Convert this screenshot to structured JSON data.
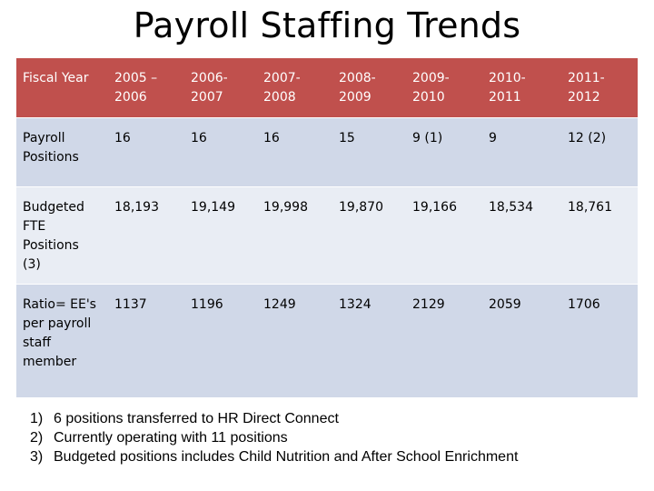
{
  "title": "Payroll Staffing Trends",
  "table": {
    "headers": [
      "Fiscal Year",
      "2005 –\n2006",
      "2006-\n2007",
      "2007-\n2008",
      "2008-\n2009",
      "2009-\n2010",
      "2010-\n2011",
      "2011-\n2012"
    ],
    "rows": [
      {
        "label": "Payroll\nPositions",
        "cells": [
          "16",
          "16",
          "16",
          "15",
          "9  (1)",
          "9",
          "12  (2)"
        ]
      },
      {
        "label": "Budgeted\nFTE\nPositions\n(3)",
        "cells": [
          "18,193",
          "19,149",
          "19,998",
          "19,870",
          "19,166",
          "18,534",
          "18,761"
        ]
      },
      {
        "label": "Ratio= EE's\nper payroll\nstaff\nmember",
        "cells": [
          "1137",
          "1196",
          "1249",
          "1324",
          "2129",
          "2059",
          "1706"
        ]
      }
    ]
  },
  "footnotes": [
    {
      "num": "1)",
      "text": "6 positions transferred to HR Direct Connect"
    },
    {
      "num": "2)",
      "text": "Currently operating with 11 positions"
    },
    {
      "num": "3)",
      "text": "Budgeted positions includes Child Nutrition and After School Enrichment"
    }
  ],
  "colors": {
    "header_bg": "#c0504d",
    "band_dark": "#d0d8e8",
    "band_light": "#e9edf4"
  }
}
